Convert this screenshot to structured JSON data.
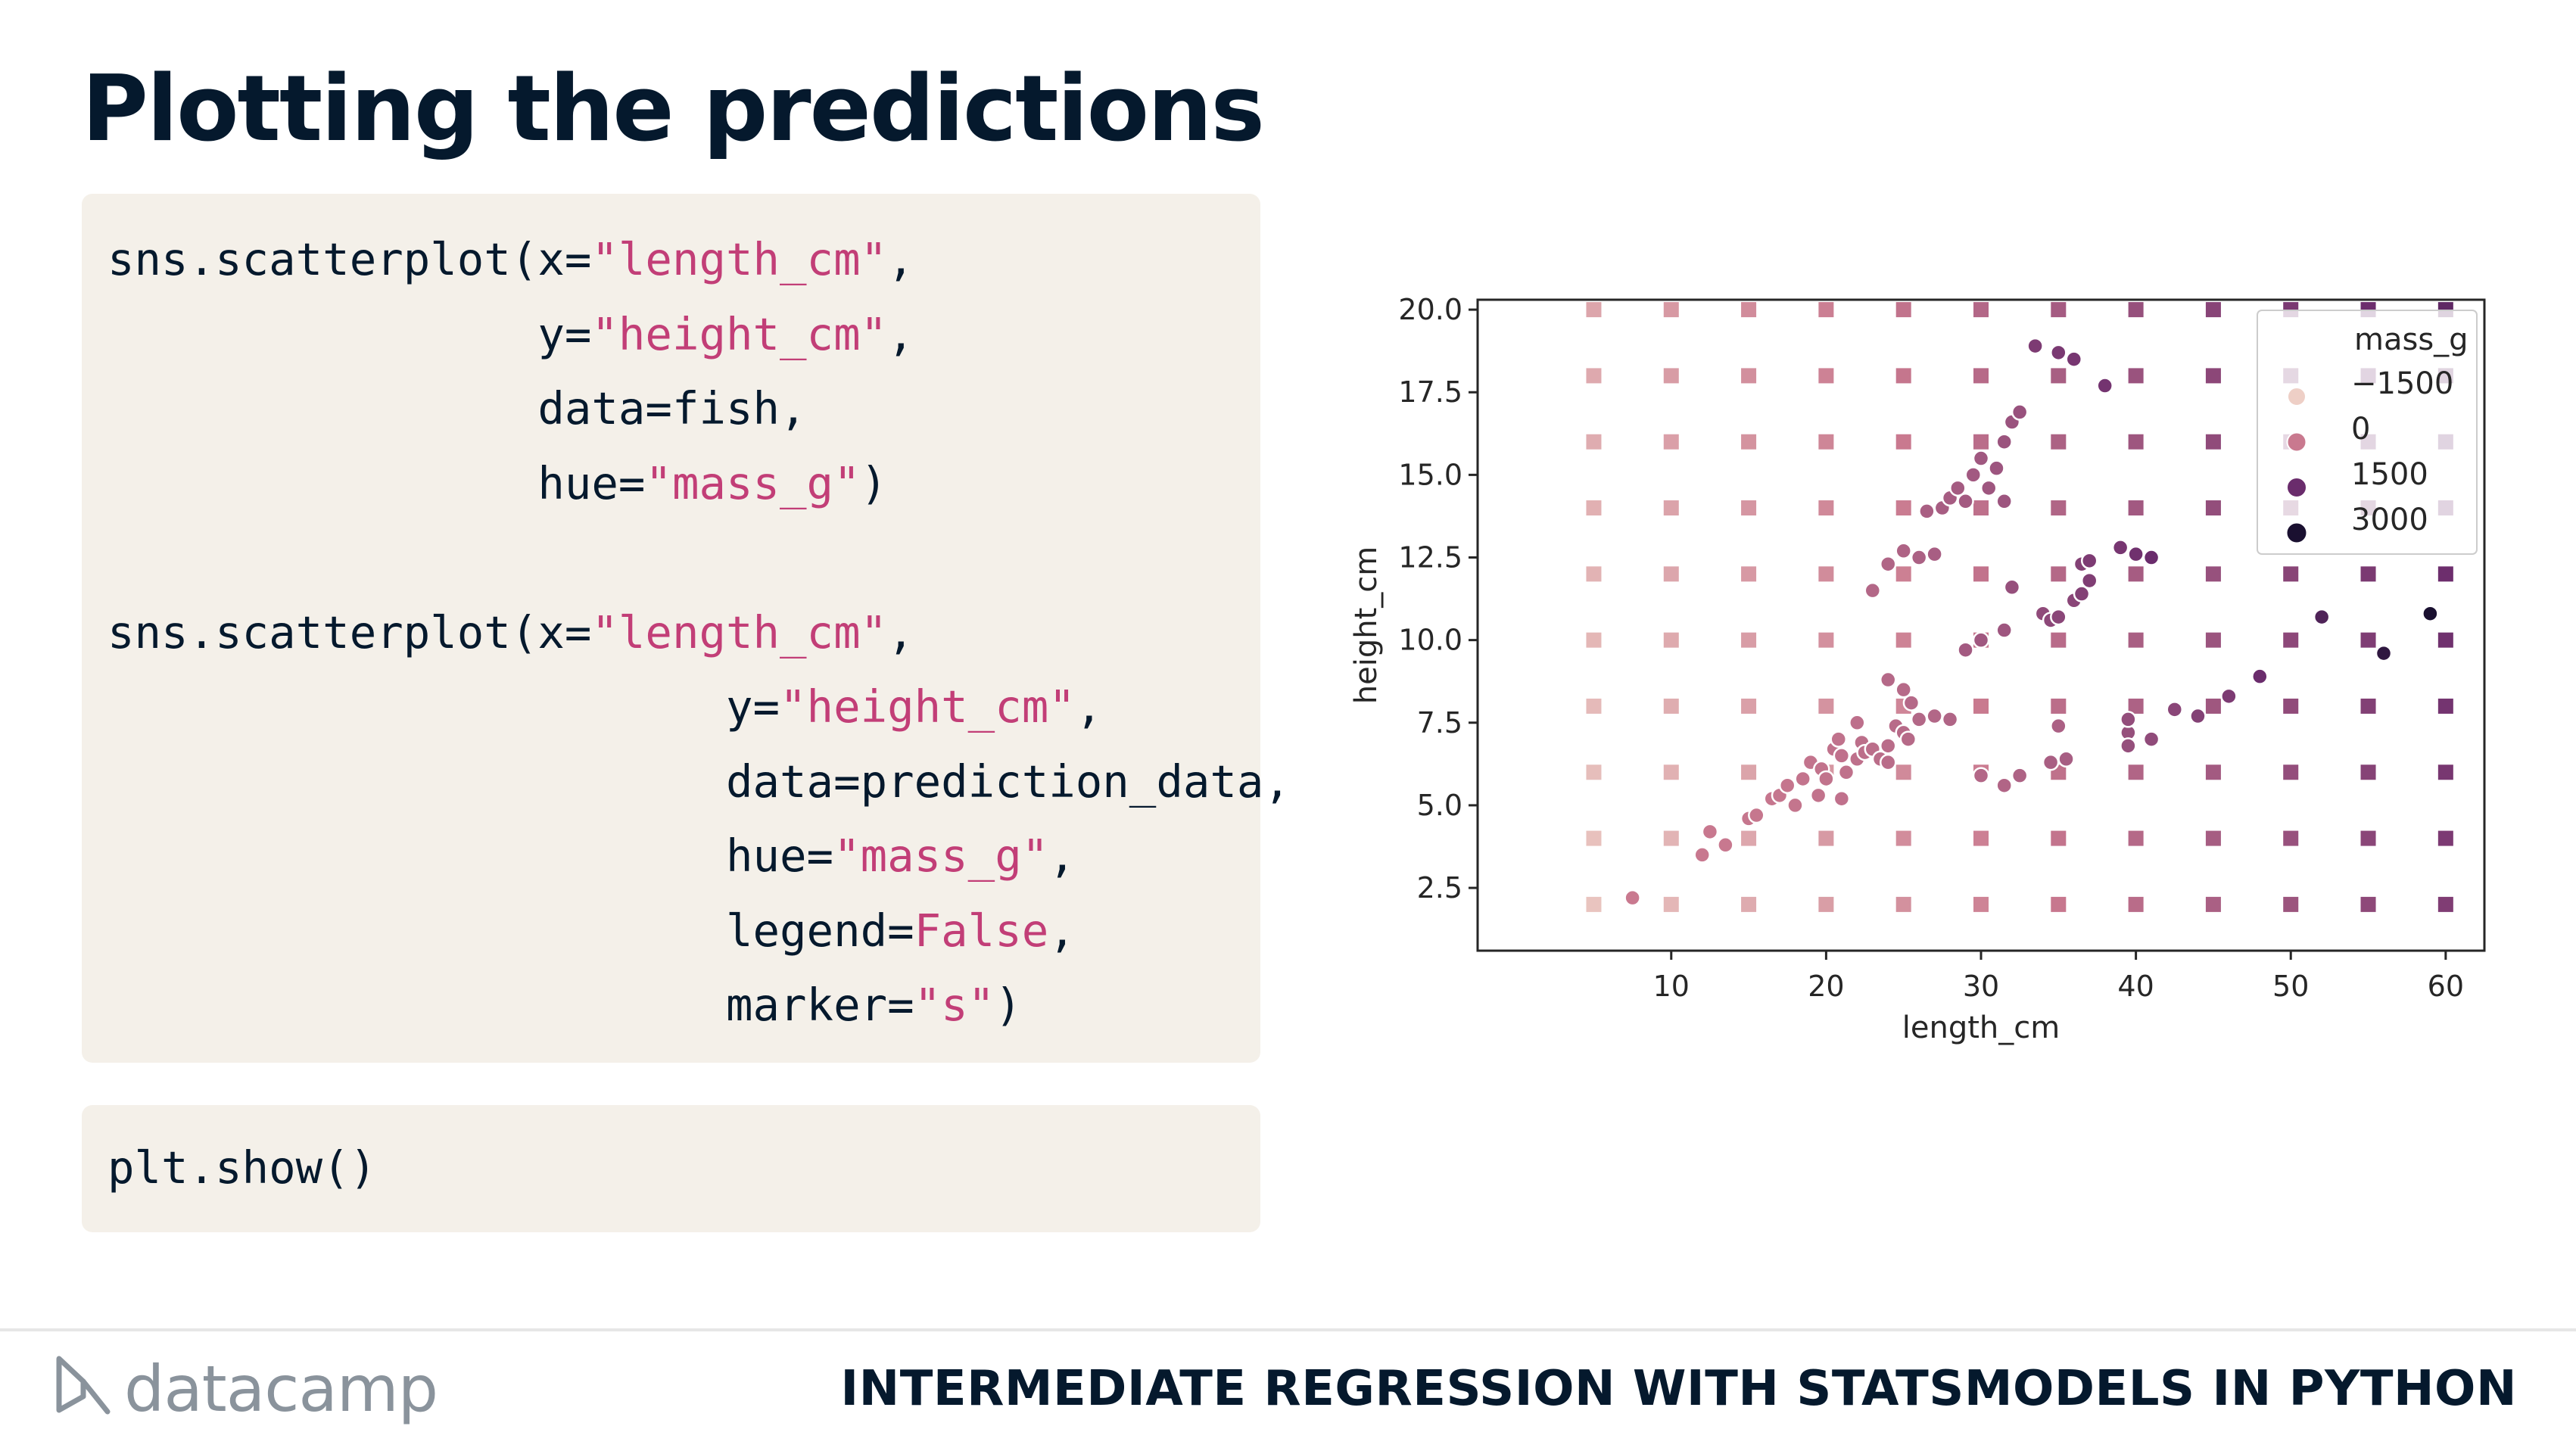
{
  "slide": {
    "title": "Plotting the predictions",
    "course_title": "INTERMEDIATE REGRESSION WITH STATSMODELS IN PYTHON",
    "brand": "datacamp"
  },
  "code_blocks": [
    {
      "lines": [
        [
          {
            "t": "sns.scatterplot(x=",
            "c": "plain"
          },
          {
            "t": "\"length_cm\"",
            "c": "str"
          },
          {
            "t": ",",
            "c": "plain"
          }
        ],
        [
          {
            "t": "                y=",
            "c": "plain"
          },
          {
            "t": "\"height_cm\"",
            "c": "str"
          },
          {
            "t": ",",
            "c": "plain"
          }
        ],
        [
          {
            "t": "                data=fish,",
            "c": "plain"
          }
        ],
        [
          {
            "t": "                hue=",
            "c": "plain"
          },
          {
            "t": "\"mass_g\"",
            "c": "str"
          },
          {
            "t": ")",
            "c": "plain"
          }
        ],
        [
          {
            "t": "",
            "c": "plain"
          }
        ],
        [
          {
            "t": "sns.scatterplot(x=",
            "c": "plain"
          },
          {
            "t": "\"length_cm\"",
            "c": "str"
          },
          {
            "t": ",",
            "c": "plain"
          }
        ],
        [
          {
            "t": "                       y=",
            "c": "plain"
          },
          {
            "t": "\"height_cm\"",
            "c": "str"
          },
          {
            "t": ",",
            "c": "plain"
          }
        ],
        [
          {
            "t": "                       data=prediction_data,",
            "c": "plain"
          }
        ],
        [
          {
            "t": "                       hue=",
            "c": "plain"
          },
          {
            "t": "\"mass_g\"",
            "c": "str"
          },
          {
            "t": ",",
            "c": "plain"
          }
        ],
        [
          {
            "t": "                       legend=",
            "c": "plain"
          },
          {
            "t": "False",
            "c": "kw"
          },
          {
            "t": ",",
            "c": "plain"
          }
        ],
        [
          {
            "t": "                       marker=",
            "c": "plain"
          },
          {
            "t": "\"s\"",
            "c": "str"
          },
          {
            "t": ")",
            "c": "plain"
          }
        ]
      ]
    },
    {
      "lines": [
        [
          {
            "t": "plt.show()",
            "c": "plain"
          }
        ]
      ]
    }
  ],
  "chart_data": {
    "type": "scatter",
    "xlabel": "length_cm",
    "ylabel": "height_cm",
    "xlim": [
      -2.5,
      62.5
    ],
    "ylim": [
      0.6,
      20.3
    ],
    "xticks": [
      10,
      20,
      30,
      40,
      50,
      60
    ],
    "yticks": [
      2.5,
      5.0,
      7.5,
      10.0,
      12.5,
      15.0,
      17.5,
      20.0
    ],
    "ytick_labels": [
      "2.5",
      "5.0",
      "7.5",
      "10.0",
      "12.5",
      "15.0",
      "17.5",
      "20.0"
    ],
    "grid": false,
    "legend": {
      "title": "mass_g",
      "placement": "top-right",
      "entries": [
        {
          "label": "−1500",
          "value": -1500
        },
        {
          "label": "0",
          "value": 0
        },
        {
          "label": "1500",
          "value": 1500
        },
        {
          "label": "3000",
          "value": 3000
        }
      ]
    },
    "colors": {
      "hue_low": "#eecfc6",
      "hue_mid": "#c9798f",
      "hue_high": "#6a2c6c",
      "hue_top": "#1a1030",
      "axis": "#262626"
    },
    "series": [
      {
        "marker": "circle",
        "hue_range": [
          -1500,
          3000
        ],
        "points": [
          [
            7.5,
            2.2,
            5
          ],
          [
            12.0,
            3.5,
            10
          ],
          [
            12.5,
            4.2,
            12
          ],
          [
            13.5,
            3.8,
            14
          ],
          [
            15.0,
            4.6,
            40
          ],
          [
            15.5,
            4.7,
            45
          ],
          [
            16.5,
            5.2,
            55
          ],
          [
            17.0,
            5.3,
            60
          ],
          [
            17.5,
            5.6,
            70
          ],
          [
            18.0,
            5.0,
            80
          ],
          [
            18.5,
            5.8,
            90
          ],
          [
            19.0,
            6.3,
            100
          ],
          [
            19.5,
            5.3,
            110
          ],
          [
            19.7,
            6.1,
            115
          ],
          [
            20.0,
            5.8,
            120
          ],
          [
            20.5,
            6.7,
            135
          ],
          [
            20.8,
            7.0,
            145
          ],
          [
            21.0,
            6.5,
            150
          ],
          [
            21.3,
            6.0,
            160
          ],
          [
            21.0,
            5.2,
            150
          ],
          [
            22.0,
            6.4,
            180
          ],
          [
            22.0,
            7.5,
            190
          ],
          [
            22.3,
            6.9,
            200
          ],
          [
            22.5,
            6.6,
            200
          ],
          [
            23.0,
            6.7,
            220
          ],
          [
            23.5,
            6.4,
            240
          ],
          [
            24.0,
            6.8,
            250
          ],
          [
            24.0,
            6.3,
            250
          ],
          [
            24.5,
            7.4,
            270
          ],
          [
            25.0,
            7.2,
            290
          ],
          [
            25.0,
            8.5,
            300
          ],
          [
            25.3,
            7.0,
            300
          ],
          [
            25.5,
            8.1,
            320
          ],
          [
            24.0,
            8.8,
            310
          ],
          [
            26.0,
            7.6,
            340
          ],
          [
            27.0,
            7.7,
            360
          ],
          [
            28.0,
            7.6,
            390
          ],
          [
            23.0,
            11.5,
            350
          ],
          [
            24.0,
            12.3,
            390
          ],
          [
            25.0,
            12.7,
            420
          ],
          [
            26.0,
            12.5,
            470
          ],
          [
            26.5,
            13.9,
            500
          ],
          [
            27.0,
            12.6,
            520
          ],
          [
            27.5,
            14.0,
            540
          ],
          [
            28.0,
            14.3,
            560
          ],
          [
            28.5,
            14.6,
            580
          ],
          [
            29.0,
            14.2,
            600
          ],
          [
            29.5,
            15.0,
            620
          ],
          [
            30.0,
            15.5,
            650
          ],
          [
            30.5,
            14.6,
            680
          ],
          [
            31.0,
            15.2,
            700
          ],
          [
            31.5,
            16.0,
            720
          ],
          [
            32.0,
            16.6,
            750
          ],
          [
            32.5,
            16.9,
            780
          ],
          [
            31.5,
            14.2,
            700
          ],
          [
            30.0,
            5.9,
            350
          ],
          [
            31.5,
            5.6,
            380
          ],
          [
            32.5,
            5.9,
            420
          ],
          [
            34.5,
            6.3,
            500
          ],
          [
            35.5,
            6.4,
            530
          ],
          [
            35.0,
            7.4,
            480
          ],
          [
            29.0,
            9.7,
            600
          ],
          [
            30.0,
            10.0,
            640
          ],
          [
            31.5,
            10.3,
            680
          ],
          [
            34.0,
            10.8,
            900
          ],
          [
            34.5,
            10.6,
            950
          ],
          [
            35.0,
            10.7,
            1000
          ],
          [
            32.0,
            11.6,
            800
          ],
          [
            36.0,
            11.2,
            1000
          ],
          [
            36.5,
            12.3,
            1100
          ],
          [
            37.0,
            11.8,
            1150
          ],
          [
            36.5,
            11.4,
            1100
          ],
          [
            37.0,
            12.4,
            1200
          ],
          [
            39.0,
            12.8,
            1300
          ],
          [
            40.0,
            12.6,
            1400
          ],
          [
            41.0,
            12.5,
            1500
          ],
          [
            39.5,
            7.2,
            800
          ],
          [
            39.5,
            6.8,
            820
          ],
          [
            39.5,
            7.6,
            850
          ],
          [
            41.0,
            7.0,
            900
          ],
          [
            42.5,
            7.9,
            1000
          ],
          [
            44.0,
            7.7,
            1100
          ],
          [
            46.0,
            8.3,
            1200
          ],
          [
            48.0,
            8.9,
            1500
          ],
          [
            52.0,
            10.7,
            2000
          ],
          [
            56.0,
            9.6,
            2600
          ],
          [
            59.0,
            10.8,
            3000
          ],
          [
            33.5,
            18.9,
            1200
          ],
          [
            35.0,
            18.7,
            1250
          ],
          [
            36.0,
            18.5,
            1300
          ],
          [
            38.0,
            17.7,
            1350
          ]
        ]
      },
      {
        "marker": "square",
        "hue_range": [
          -1500,
          3000
        ],
        "grid_x": [
          5,
          10,
          15,
          20,
          25,
          30,
          35,
          40,
          45,
          50,
          55,
          60
        ],
        "grid_y": [
          2,
          4,
          6,
          8,
          10,
          12,
          14,
          16,
          18,
          20
        ],
        "hue_formula": "mass_g = -1600 + 45*length_cm + 30*height_cm"
      }
    ]
  }
}
